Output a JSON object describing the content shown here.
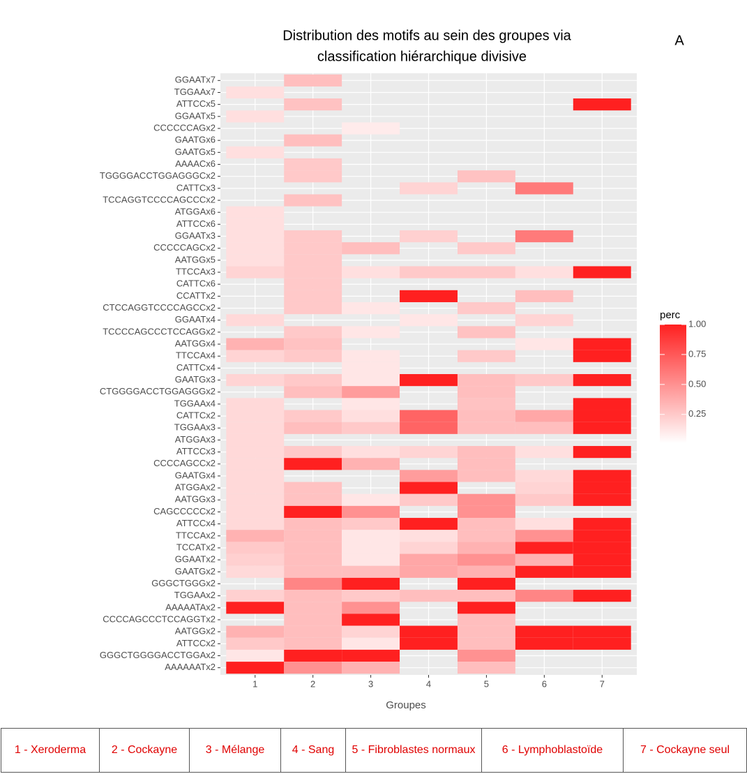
{
  "panel_label": "A",
  "group_table": [
    "1 - Xeroderma",
    "2 - Cockayne",
    "3 - Mélange",
    "4 - Sang",
    "5 - Fibroblastes normaux",
    "6 - Lymphoblastoïde",
    "7 - Cockayne seul"
  ],
  "chart_data": {
    "type": "heatmap",
    "title": [
      "Distribution des motifs au sein des groupes via",
      "classification hiérarchique divisive"
    ],
    "x_label": "Groupes",
    "x_categories": [
      "1",
      "2",
      "3",
      "4",
      "5",
      "6",
      "7"
    ],
    "y_categories": [
      "GGAATx7",
      "TGGAAx7",
      "ATTCCx5",
      "GGAATx5",
      "CCCCCCAGx2",
      "GAATGx6",
      "GAATGx5",
      "AAAACx6",
      "TGGGGACCTGGAGGGCx2",
      "CATTCx3",
      "TCCAGGTCCCCAGCCCx2",
      "ATGGAx6",
      "ATTCCx6",
      "GGAATx3",
      "CCCCCAGCx2",
      "AATGGx5",
      "TTCCAx3",
      "CATTCx6",
      "CCATTx2",
      "CTCCAGGTCCCCAGCCx2",
      "GGAATx4",
      "TCCCCAGCCCTCCAGGx2",
      "AATGGx4",
      "TTCCAx4",
      "CATTCx4",
      "GAATGx3",
      "CTGGGGACCTGGAGGGx2",
      "TGGAAx4",
      "CATTCx2",
      "TGGAAx3",
      "ATGGAx3",
      "ATTCCx3",
      "CCCCAGCCx2",
      "GAATGx4",
      "ATGGAx2",
      "AATGGx3",
      "CAGCCCCCx2",
      "ATTCCx4",
      "TTCCAx2",
      "TCCATx2",
      "GGAATx2",
      "GAATGx2",
      "GGGCTGGGx2",
      "TGGAAx2",
      "AAAAATAx2",
      "CCCCAGCCCTCCAGGTx2",
      "AATGGx2",
      "ATTCCx2",
      "GGGCTGGGGACCTGGAx2",
      "AAAAAATx2"
    ],
    "z": [
      [
        null,
        0.3,
        null,
        null,
        null,
        null,
        null
      ],
      [
        0.15,
        null,
        null,
        null,
        null,
        null,
        null
      ],
      [
        null,
        0.28,
        null,
        null,
        null,
        null,
        1
      ],
      [
        0.15,
        null,
        null,
        null,
        null,
        null,
        null
      ],
      [
        null,
        null,
        0.1,
        null,
        null,
        null,
        null
      ],
      [
        null,
        0.3,
        null,
        null,
        null,
        null,
        null
      ],
      [
        0.15,
        null,
        null,
        null,
        null,
        null,
        null
      ],
      [
        null,
        0.25,
        null,
        null,
        null,
        null,
        null
      ],
      [
        null,
        0.25,
        null,
        null,
        0.28,
        null,
        null
      ],
      [
        null,
        null,
        null,
        0.2,
        null,
        0.6,
        null
      ],
      [
        null,
        0.28,
        null,
        null,
        null,
        null,
        null
      ],
      [
        0.15,
        null,
        null,
        null,
        null,
        null,
        null
      ],
      [
        0.15,
        null,
        null,
        null,
        null,
        null,
        null
      ],
      [
        0.15,
        0.25,
        null,
        0.22,
        null,
        0.6,
        null
      ],
      [
        0.15,
        0.25,
        0.3,
        null,
        0.25,
        null,
        null
      ],
      [
        0.15,
        0.25,
        null,
        null,
        null,
        null,
        null
      ],
      [
        0.2,
        0.25,
        0.15,
        0.25,
        0.25,
        0.15,
        1
      ],
      [
        null,
        0.25,
        null,
        null,
        null,
        null,
        null
      ],
      [
        null,
        0.25,
        null,
        1,
        null,
        0.3,
        null
      ],
      [
        null,
        0.25,
        0.12,
        null,
        0.25,
        null,
        null
      ],
      [
        0.18,
        null,
        null,
        0.12,
        null,
        0.2,
        null
      ],
      [
        null,
        0.25,
        0.12,
        null,
        0.28,
        null,
        null
      ],
      [
        0.35,
        0.28,
        null,
        null,
        null,
        0.12,
        1
      ],
      [
        0.2,
        0.25,
        0.12,
        null,
        0.25,
        null,
        1
      ],
      [
        null,
        null,
        0.12,
        null,
        null,
        null,
        null
      ],
      [
        0.2,
        0.25,
        0.12,
        1,
        0.3,
        0.25,
        1
      ],
      [
        null,
        0.3,
        0.45,
        null,
        0.3,
        null,
        null
      ],
      [
        0.18,
        null,
        0.12,
        null,
        0.28,
        null,
        1
      ],
      [
        0.18,
        0.25,
        0.15,
        0.7,
        0.3,
        0.4,
        1
      ],
      [
        0.18,
        0.3,
        0.25,
        0.7,
        0.3,
        0.3,
        1
      ],
      [
        0.18,
        null,
        null,
        null,
        null,
        null,
        null
      ],
      [
        0.18,
        0.25,
        0.15,
        0.2,
        0.3,
        0.15,
        1
      ],
      [
        0.18,
        1,
        0.35,
        null,
        0.3,
        null,
        null
      ],
      [
        0.18,
        null,
        null,
        0.45,
        0.3,
        0.18,
        1
      ],
      [
        0.18,
        0.28,
        null,
        1,
        null,
        0.2,
        1
      ],
      [
        0.18,
        0.28,
        0.12,
        0.25,
        0.5,
        0.25,
        1
      ],
      [
        0.18,
        1,
        0.5,
        null,
        0.5,
        null,
        null
      ],
      [
        0.18,
        0.3,
        0.25,
        1,
        0.3,
        0.15,
        1
      ],
      [
        0.35,
        0.3,
        0.12,
        0.15,
        0.3,
        0.5,
        1
      ],
      [
        0.25,
        0.3,
        0.12,
        0.2,
        0.35,
        1,
        1
      ],
      [
        0.22,
        0.3,
        0.12,
        0.4,
        0.5,
        0.35,
        1
      ],
      [
        0.18,
        0.3,
        0.3,
        0.4,
        0.35,
        1,
        1
      ],
      [
        null,
        0.55,
        1,
        null,
        1,
        null,
        null
      ],
      [
        0.22,
        0.3,
        0.25,
        0.3,
        0.3,
        0.55,
        1
      ],
      [
        1,
        0.3,
        0.5,
        null,
        1,
        null,
        null
      ],
      [
        null,
        0.3,
        1,
        null,
        0.3,
        null,
        null
      ],
      [
        0.35,
        0.3,
        0.2,
        1,
        0.3,
        1,
        1
      ],
      [
        0.25,
        0.3,
        0.12,
        1,
        0.3,
        1,
        1
      ],
      [
        0.12,
        1,
        1,
        null,
        0.5,
        null,
        null
      ],
      [
        1,
        0.5,
        0.35,
        null,
        0.3,
        null,
        null
      ]
    ],
    "legend_title": "perc",
    "colorlim": [
      0.01,
      1
    ],
    "colorticks": [
      0.25,
      {
        "value": 0.5,
        "label": "0.50"
      },
      0.75,
      {
        "value": 1,
        "label": "1.00"
      }
    ],
    "color_low": "#ffffff",
    "color_high": "#ff2020",
    "panel_color": "#ebebeb",
    "grid": true
  }
}
